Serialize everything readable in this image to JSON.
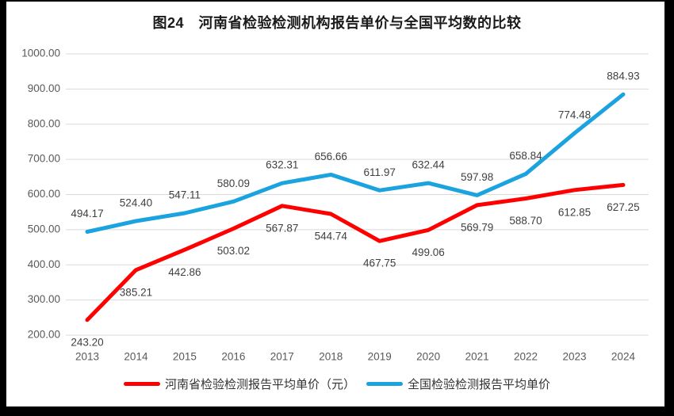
{
  "chart_data": {
    "type": "line",
    "title": "图24　河南省检验检测机构报告单价与全国平均数的比较",
    "categories": [
      "2013",
      "2014",
      "2015",
      "2016",
      "2017",
      "2018",
      "2019",
      "2020",
      "2021",
      "2022",
      "2023",
      "2024"
    ],
    "series": [
      {
        "name": "河南省检验检测报告平均单价（元）",
        "color": "#ff0000",
        "values": [
          243.2,
          385.21,
          442.86,
          503.02,
          567.87,
          544.74,
          467.75,
          499.06,
          569.79,
          588.7,
          612.85,
          627.25
        ],
        "label_position": "below"
      },
      {
        "name": "全国检验检测报告平均单价",
        "color": "#1aa3df",
        "values": [
          494.17,
          524.4,
          547.11,
          580.09,
          632.31,
          656.66,
          611.97,
          632.44,
          597.98,
          658.84,
          774.48,
          884.93
        ],
        "label_position": "above"
      }
    ],
    "ylim": [
      200,
      1000
    ],
    "ytick_step": 100,
    "ytick_labels": [
      "200.00",
      "300.00",
      "400.00",
      "500.00",
      "600.00",
      "700.00",
      "800.00",
      "900.00",
      "1000.00"
    ],
    "grid": true,
    "legend_position": "bottom",
    "colors": {
      "gridline": "#d9d9d9",
      "axis_text": "#595959",
      "data_label_text": "#404040",
      "title_text": "#1a1a1a",
      "frame": "#000000",
      "background": "#ffffff"
    }
  }
}
